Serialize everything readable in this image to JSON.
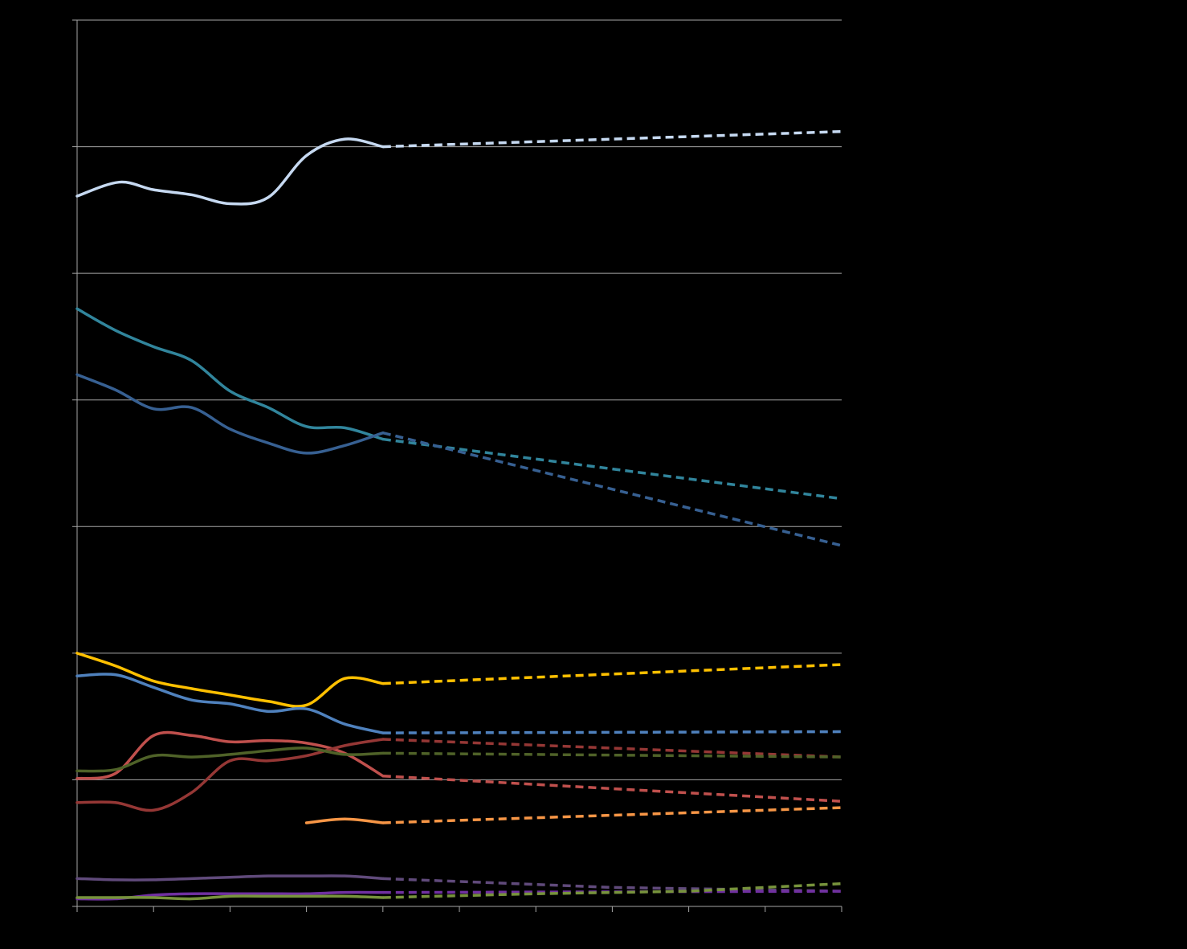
{
  "background": "#000000",
  "chart_data": {
    "type": "line",
    "title": "",
    "xlabel": "",
    "ylabel": "",
    "grid": true,
    "gridline_color": "#a6a6a6",
    "axis_color": "#a6a6a6",
    "ylim": [
      0,
      7
    ],
    "y_gridlines": [
      1,
      2,
      3,
      4,
      5,
      6
    ],
    "xlim": [
      0,
      10
    ],
    "x_ticks": [
      0,
      1,
      2,
      3,
      4,
      5,
      6,
      7,
      8,
      9,
      10
    ],
    "series": [
      {
        "color": "#c6d9f1",
        "actual": [
          [
            0,
            5.61
          ],
          [
            0.55,
            5.72
          ],
          [
            1,
            5.66
          ],
          [
            1.5,
            5.62
          ],
          [
            2,
            5.55
          ],
          [
            2.5,
            5.6
          ],
          [
            3,
            5.93
          ],
          [
            3.5,
            6.06
          ],
          [
            4,
            6.0
          ]
        ],
        "projected": [
          [
            4,
            6.0
          ],
          [
            10,
            6.12
          ]
        ]
      },
      {
        "color": "#31859c",
        "actual": [
          [
            0,
            4.72
          ],
          [
            0.5,
            4.55
          ],
          [
            1,
            4.42
          ],
          [
            1.5,
            4.31
          ],
          [
            2,
            4.07
          ],
          [
            2.5,
            3.94
          ],
          [
            3,
            3.79
          ],
          [
            3.5,
            3.78
          ],
          [
            4,
            3.69
          ]
        ],
        "projected": [
          [
            4,
            3.69
          ],
          [
            10,
            3.22
          ]
        ]
      },
      {
        "color": "#376092",
        "actual": [
          [
            0,
            4.2
          ],
          [
            0.5,
            4.08
          ],
          [
            1,
            3.93
          ],
          [
            1.5,
            3.94
          ],
          [
            2,
            3.77
          ],
          [
            2.5,
            3.66
          ],
          [
            3,
            3.58
          ],
          [
            3.5,
            3.64
          ],
          [
            4,
            3.74
          ]
        ],
        "projected": [
          [
            4,
            3.74
          ],
          [
            10,
            2.85
          ]
        ]
      },
      {
        "color": "#ffc000",
        "actual": [
          [
            0,
            2.0
          ],
          [
            0.5,
            1.9
          ],
          [
            1,
            1.78
          ],
          [
            1.5,
            1.72
          ],
          [
            2,
            1.67
          ],
          [
            2.5,
            1.62
          ],
          [
            3,
            1.59
          ],
          [
            3.5,
            1.8
          ],
          [
            4,
            1.76
          ]
        ],
        "projected": [
          [
            4,
            1.76
          ],
          [
            10,
            1.91
          ]
        ]
      },
      {
        "color": "#4f81bd",
        "actual": [
          [
            0,
            1.82
          ],
          [
            0.5,
            1.83
          ],
          [
            1,
            1.73
          ],
          [
            1.5,
            1.63
          ],
          [
            2,
            1.6
          ],
          [
            2.5,
            1.54
          ],
          [
            3,
            1.56
          ],
          [
            3.5,
            1.44
          ],
          [
            4,
            1.37
          ]
        ],
        "projected": [
          [
            4,
            1.37
          ],
          [
            10,
            1.38
          ]
        ]
      },
      {
        "color": "#c0504d",
        "actual": [
          [
            0,
            1.01
          ],
          [
            0.5,
            1.05
          ],
          [
            1,
            1.35
          ],
          [
            1.5,
            1.35
          ],
          [
            2,
            1.3
          ],
          [
            2.5,
            1.31
          ],
          [
            3,
            1.29
          ],
          [
            3.5,
            1.21
          ],
          [
            4,
            1.03
          ]
        ],
        "projected": [
          [
            4,
            1.03
          ],
          [
            10,
            0.83
          ]
        ]
      },
      {
        "color": "#953735",
        "actual": [
          [
            0,
            0.82
          ],
          [
            0.5,
            0.82
          ],
          [
            1,
            0.76
          ],
          [
            1.5,
            0.9
          ],
          [
            2,
            1.15
          ],
          [
            2.5,
            1.15
          ],
          [
            3,
            1.19
          ],
          [
            3.5,
            1.27
          ],
          [
            4,
            1.32
          ]
        ],
        "projected": [
          [
            4,
            1.32
          ],
          [
            10,
            1.18
          ]
        ]
      },
      {
        "color": "#4f6228",
        "actual": [
          [
            0,
            1.07
          ],
          [
            0.5,
            1.08
          ],
          [
            1,
            1.19
          ],
          [
            1.5,
            1.18
          ],
          [
            2,
            1.2
          ],
          [
            2.5,
            1.23
          ],
          [
            3,
            1.25
          ],
          [
            3.5,
            1.2
          ],
          [
            4,
            1.21
          ]
        ],
        "projected": [
          [
            4,
            1.21
          ],
          [
            10,
            1.18
          ]
        ]
      },
      {
        "color": "#f79646",
        "actual": [
          [
            3,
            0.66
          ],
          [
            3.5,
            0.69
          ],
          [
            4,
            0.66
          ]
        ],
        "projected": [
          [
            4,
            0.66
          ],
          [
            10,
            0.78
          ]
        ]
      },
      {
        "color": "#604a7b",
        "actual": [
          [
            0,
            0.22
          ],
          [
            0.5,
            0.21
          ],
          [
            1,
            0.21
          ],
          [
            1.5,
            0.22
          ],
          [
            2,
            0.23
          ],
          [
            2.5,
            0.24
          ],
          [
            3,
            0.24
          ],
          [
            3.5,
            0.24
          ],
          [
            4,
            0.22
          ]
        ],
        "projected": [
          [
            4,
            0.22
          ],
          [
            7,
            0.15
          ],
          [
            10,
            0.12
          ]
        ]
      },
      {
        "color": "#7030a0",
        "actual": [
          [
            0,
            0.06
          ],
          [
            0.5,
            0.06
          ],
          [
            1,
            0.09
          ],
          [
            1.5,
            0.1
          ],
          [
            2,
            0.1
          ],
          [
            2.5,
            0.1
          ],
          [
            3,
            0.1
          ],
          [
            3.5,
            0.11
          ],
          [
            4,
            0.11
          ]
        ],
        "projected": [
          [
            4,
            0.11
          ],
          [
            10,
            0.12
          ]
        ]
      },
      {
        "color": "#77933c",
        "actual": [
          [
            0,
            0.07
          ],
          [
            0.5,
            0.07
          ],
          [
            1,
            0.07
          ],
          [
            1.5,
            0.06
          ],
          [
            2,
            0.08
          ],
          [
            2.5,
            0.08
          ],
          [
            3,
            0.08
          ],
          [
            3.5,
            0.08
          ],
          [
            4,
            0.07
          ]
        ],
        "projected": [
          [
            4,
            0.07
          ],
          [
            6,
            0.1
          ],
          [
            8,
            0.12
          ],
          [
            10,
            0.18
          ]
        ]
      }
    ]
  }
}
